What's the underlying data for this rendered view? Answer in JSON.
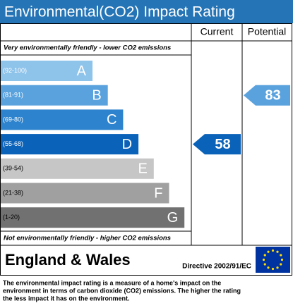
{
  "chart_data": {
    "type": "epc",
    "title": "Environmental(CO2) Impact Rating",
    "top_note": "Very environmentally friendly - lower CO2 emissions",
    "bottom_note": "Not environmentally friendly - higher CO2 emissions",
    "bands": [
      {
        "range": "(92-100)",
        "letter": "A",
        "color": "#8ec3ea"
      },
      {
        "range": "(81-91)",
        "letter": "B",
        "color": "#5aa2de"
      },
      {
        "range": "(69-80)",
        "letter": "C",
        "color": "#2d83cd"
      },
      {
        "range": "(55-68)",
        "letter": "D",
        "color": "#0b63b9"
      },
      {
        "range": "(39-54)",
        "letter": "E",
        "color": "#c6c6c6"
      },
      {
        "range": "(21-38)",
        "letter": "F",
        "color": "#a0a0a0"
      },
      {
        "range": "(1-20)",
        "letter": "G",
        "color": "#717171"
      }
    ],
    "series": [
      {
        "name": "Current",
        "value": 58
      },
      {
        "name": "Potential",
        "value": 83
      }
    ],
    "region": "England & Wales",
    "directive": "Directive 2002/91/EC",
    "footnote": [
      "The environmental impact rating is a measure of a home's impact on the",
      "environment in terms of carbon dioxide (CO2) emissions. The higher the rating",
      "the less impact it has on the environment."
    ]
  }
}
